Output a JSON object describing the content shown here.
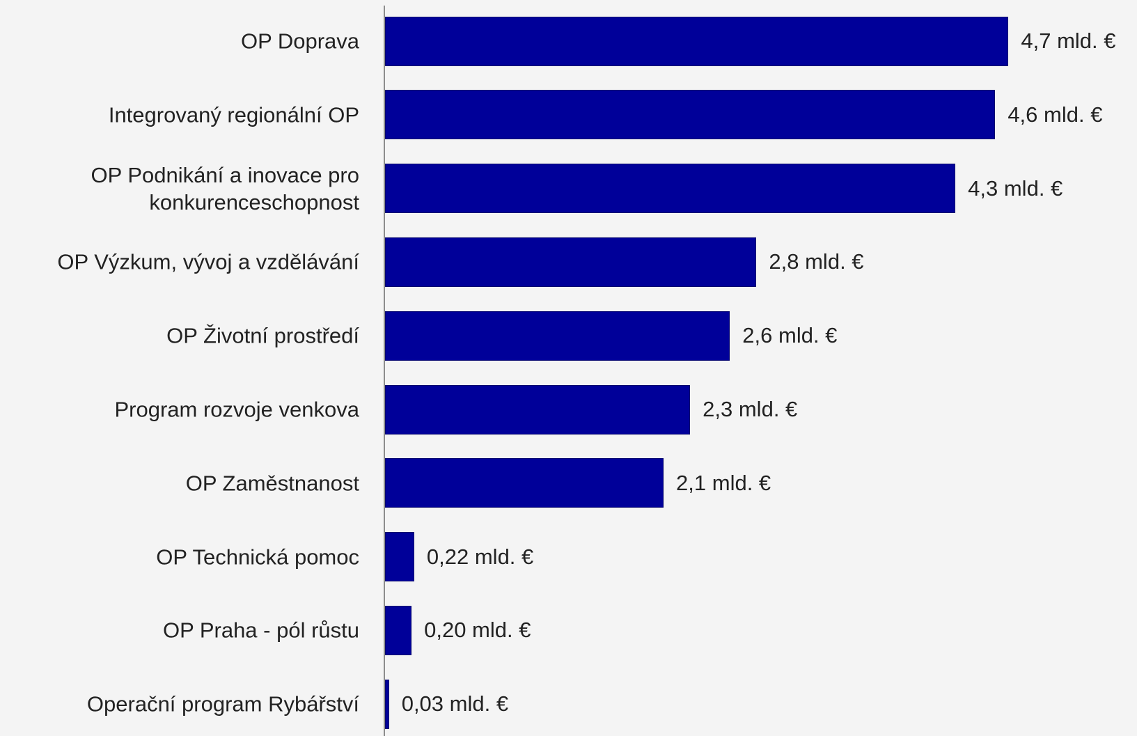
{
  "chart_data": {
    "type": "bar",
    "orientation": "horizontal",
    "categories": [
      "OP Doprava",
      "Integrovaný regionální OP",
      "OP Podnikání a inovace pro konkurenceschopnost",
      "OP Výzkum, vývoj a vzdělávání",
      "OP Životní prostředí",
      "Program rozvoje venkova",
      "OP Zaměstnanost",
      "OP Technická pomoc",
      "OP Praha - pól růstu",
      "Operační program Rybářství"
    ],
    "values": [
      4.7,
      4.6,
      4.3,
      2.8,
      2.6,
      2.3,
      2.1,
      0.22,
      0.2,
      0.03
    ],
    "value_labels": [
      "4,7 mld. €",
      "4,6 mld. €",
      "4,3 mld. €",
      "2,8 mld. €",
      "2,6 mld. €",
      "2,3 mld. €",
      "2,1 mld. €",
      "0,22 mld. €",
      "0,20 mld. €",
      "0,03 mld. €"
    ],
    "color": "#000099"
  }
}
